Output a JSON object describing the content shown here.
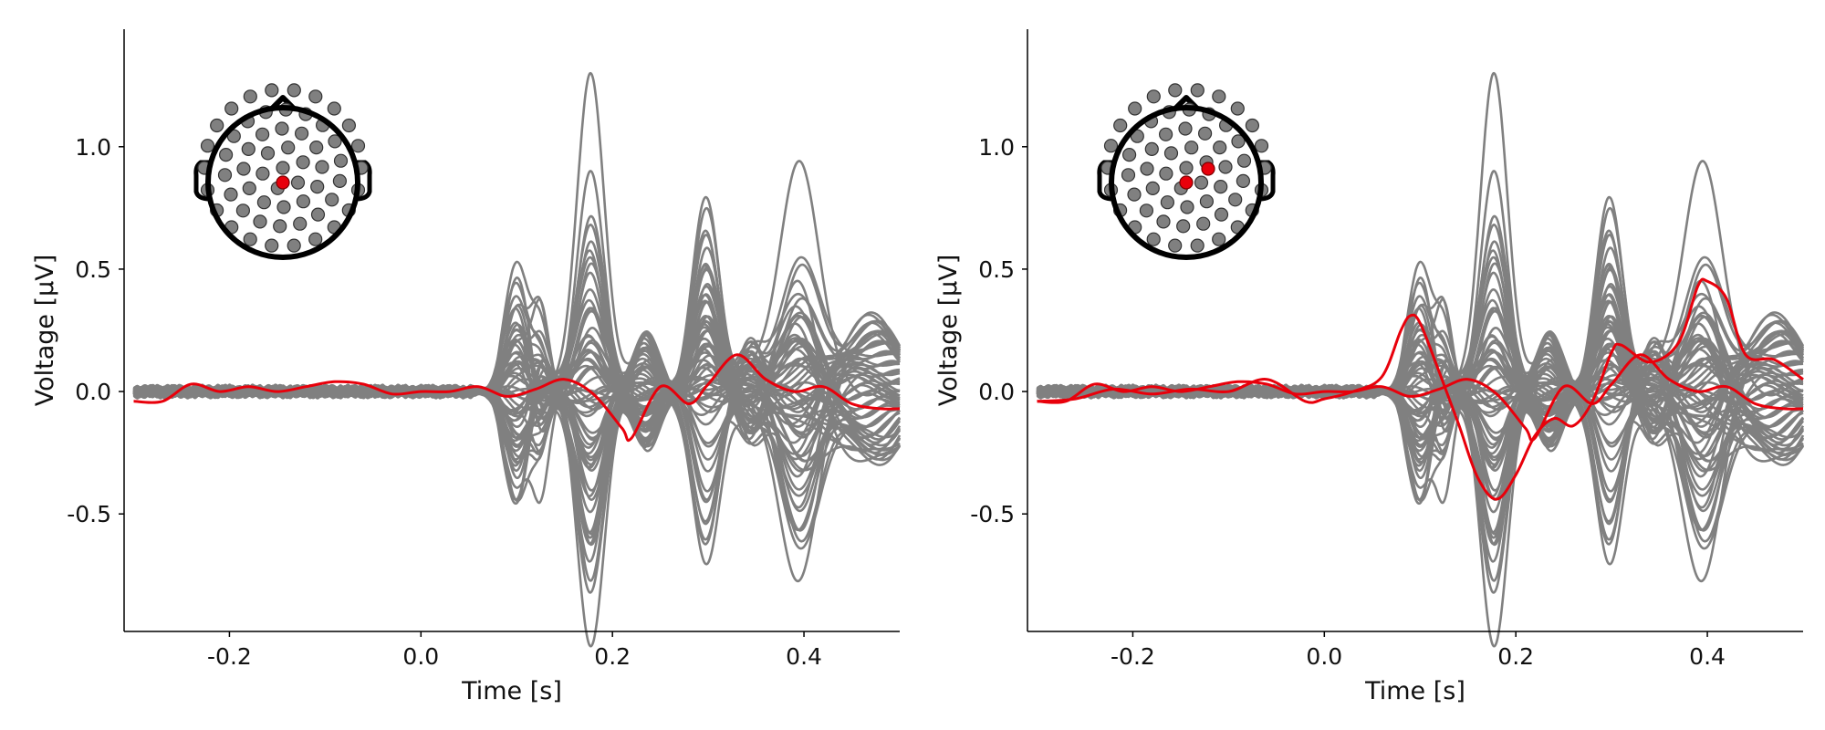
{
  "chart_data": [
    {
      "type": "line",
      "panel": "left",
      "xlabel": "Time [s]",
      "ylabel": "Voltage [µV]",
      "xlim": [
        -0.31,
        0.5
      ],
      "ylim": [
        -0.98,
        1.48
      ],
      "xticks": [
        -0.2,
        0.0,
        0.2,
        0.4
      ],
      "xtick_labels": [
        "-0.2",
        "0.0",
        "0.2",
        "0.4"
      ],
      "yticks": [
        -0.5,
        0.0,
        0.5,
        1.0
      ],
      "ytick_labels": [
        "-0.5",
        "0.0",
        "0.5",
        "1.0"
      ],
      "grid": false,
      "background_series_color": "#808080",
      "highlight_color": "#e8000b",
      "background_series_count": 64,
      "highlighted_series": [
        {
          "x": [
            -0.3,
            -0.27,
            -0.24,
            -0.21,
            -0.18,
            -0.15,
            -0.12,
            -0.09,
            -0.06,
            -0.03,
            0.0,
            0.03,
            0.06,
            0.09,
            0.12,
            0.15,
            0.18,
            0.21,
            0.22,
            0.25,
            0.28,
            0.3,
            0.33,
            0.36,
            0.39,
            0.42,
            0.45,
            0.48,
            0.5
          ],
          "y": [
            -0.04,
            -0.04,
            0.03,
            0.0,
            0.02,
            0.0,
            0.02,
            0.04,
            0.03,
            -0.01,
            0.0,
            0.0,
            0.02,
            -0.02,
            0.01,
            0.05,
            -0.01,
            -0.15,
            -0.19,
            0.02,
            -0.05,
            0.03,
            0.15,
            0.05,
            0.0,
            0.02,
            -0.05,
            -0.07,
            -0.07
          ]
        }
      ],
      "inset": {
        "type": "electrode-montage",
        "electrode_count": 64,
        "highlighted_electrodes": 1
      }
    },
    {
      "type": "line",
      "panel": "right",
      "xlabel": "Time [s]",
      "ylabel": "Voltage [µV]",
      "xlim": [
        -0.31,
        0.5
      ],
      "ylim": [
        -0.98,
        1.48
      ],
      "xticks": [
        -0.2,
        0.0,
        0.2,
        0.4
      ],
      "xtick_labels": [
        "-0.2",
        "0.0",
        "0.2",
        "0.4"
      ],
      "yticks": [
        -0.5,
        0.0,
        0.5,
        1.0
      ],
      "ytick_labels": [
        "-0.5",
        "0.0",
        "0.5",
        "1.0"
      ],
      "grid": false,
      "background_series_color": "#808080",
      "highlight_color": "#e8000b",
      "background_series_count": 64,
      "highlighted_series": [
        {
          "x": [
            -0.3,
            -0.27,
            -0.24,
            -0.21,
            -0.18,
            -0.15,
            -0.12,
            -0.09,
            -0.06,
            -0.03,
            0.0,
            0.03,
            0.06,
            0.09,
            0.12,
            0.15,
            0.18,
            0.21,
            0.22,
            0.25,
            0.28,
            0.3,
            0.33,
            0.36,
            0.39,
            0.42,
            0.45,
            0.48,
            0.5
          ],
          "y": [
            -0.04,
            -0.04,
            0.03,
            0.0,
            0.02,
            0.0,
            0.02,
            0.04,
            0.03,
            -0.01,
            0.0,
            0.0,
            0.02,
            -0.02,
            0.01,
            0.05,
            -0.01,
            -0.15,
            -0.19,
            0.02,
            -0.05,
            0.03,
            0.15,
            0.05,
            0.0,
            0.02,
            -0.05,
            -0.07,
            -0.07
          ]
        },
        {
          "x": [
            -0.3,
            -0.26,
            -0.22,
            -0.18,
            -0.14,
            -0.1,
            -0.06,
            -0.02,
            0.0,
            0.03,
            0.06,
            0.08,
            0.09,
            0.1,
            0.12,
            0.14,
            0.16,
            0.18,
            0.2,
            0.22,
            0.24,
            0.26,
            0.28,
            0.3,
            0.31,
            0.34,
            0.37,
            0.39,
            0.4,
            0.42,
            0.44,
            0.47,
            0.5
          ],
          "y": [
            -0.04,
            -0.03,
            0.01,
            -0.01,
            0.01,
            0.0,
            0.05,
            -0.04,
            -0.03,
            0.0,
            0.06,
            0.25,
            0.31,
            0.28,
            0.08,
            -0.13,
            -0.35,
            -0.44,
            -0.34,
            -0.18,
            -0.11,
            -0.14,
            -0.04,
            0.16,
            0.19,
            0.12,
            0.2,
            0.43,
            0.45,
            0.38,
            0.15,
            0.13,
            0.05
          ]
        }
      ],
      "inset": {
        "type": "electrode-montage",
        "electrode_count": 64,
        "highlighted_electrodes": 2
      }
    }
  ]
}
